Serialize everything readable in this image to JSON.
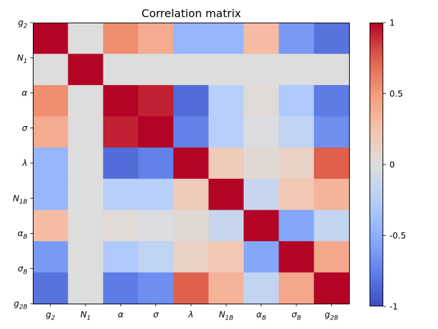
{
  "chart_data": {
    "type": "heatmap",
    "title": "Correlation matrix",
    "x_labels": [
      {
        "base": "g",
        "sub": "2",
        "italic": true
      },
      {
        "base": "N",
        "sub": "1",
        "italic": true
      },
      {
        "base": "α",
        "sub": "",
        "italic": true
      },
      {
        "base": "σ",
        "sub": "",
        "italic": true
      },
      {
        "base": "λ",
        "sub": "",
        "italic": true
      },
      {
        "base": "N",
        "sub": "1B",
        "italic": true
      },
      {
        "base": "α",
        "sub": "B",
        "italic": true
      },
      {
        "base": "σ",
        "sub": "B",
        "italic": true
      },
      {
        "base": "g",
        "sub": "2B",
        "italic": true
      }
    ],
    "y_labels": [
      {
        "base": "g",
        "sub": "2",
        "italic": true
      },
      {
        "base": "N",
        "sub": "1",
        "italic": true
      },
      {
        "base": "α",
        "sub": "",
        "italic": true
      },
      {
        "base": "σ",
        "sub": "",
        "italic": true
      },
      {
        "base": "λ",
        "sub": "",
        "italic": true
      },
      {
        "base": "N",
        "sub": "1B",
        "italic": true
      },
      {
        "base": "α",
        "sub": "B",
        "italic": true
      },
      {
        "base": "σ",
        "sub": "B",
        "italic": true
      },
      {
        "base": "g",
        "sub": "2B",
        "italic": true
      }
    ],
    "matrix": [
      [
        1.0,
        0.0,
        0.55,
        0.4,
        -0.45,
        -0.45,
        0.3,
        -0.62,
        -0.82
      ],
      [
        0.0,
        1.0,
        0.0,
        0.0,
        0.0,
        0.0,
        0.0,
        0.0,
        0.0
      ],
      [
        0.55,
        0.0,
        1.0,
        0.92,
        -0.85,
        -0.25,
        0.03,
        -0.3,
        -0.78
      ],
      [
        0.4,
        0.0,
        0.92,
        1.0,
        -0.75,
        -0.25,
        -0.02,
        -0.2,
        -0.68
      ],
      [
        -0.45,
        0.0,
        -0.85,
        -0.75,
        1.0,
        0.18,
        0.05,
        0.12,
        0.75
      ],
      [
        -0.45,
        0.0,
        -0.25,
        -0.25,
        0.18,
        1.0,
        -0.15,
        0.22,
        0.35
      ],
      [
        0.3,
        0.0,
        0.03,
        -0.02,
        0.05,
        -0.15,
        1.0,
        -0.55,
        -0.18
      ],
      [
        -0.62,
        0.0,
        -0.3,
        -0.2,
        0.12,
        0.22,
        -0.55,
        1.0,
        0.42
      ],
      [
        -0.82,
        0.0,
        -0.78,
        -0.68,
        0.75,
        0.35,
        -0.18,
        0.42,
        1.0
      ]
    ],
    "colormap": "coolwarm",
    "vmin": -1,
    "vmax": 1,
    "colorbar_ticks": [
      {
        "value": -1,
        "label": "-1"
      },
      {
        "value": -0.5,
        "label": "-0.5"
      },
      {
        "value": 0,
        "label": "0"
      },
      {
        "value": 0.5,
        "label": "0.5"
      },
      {
        "value": 1,
        "label": "1"
      }
    ],
    "grid": false
  }
}
